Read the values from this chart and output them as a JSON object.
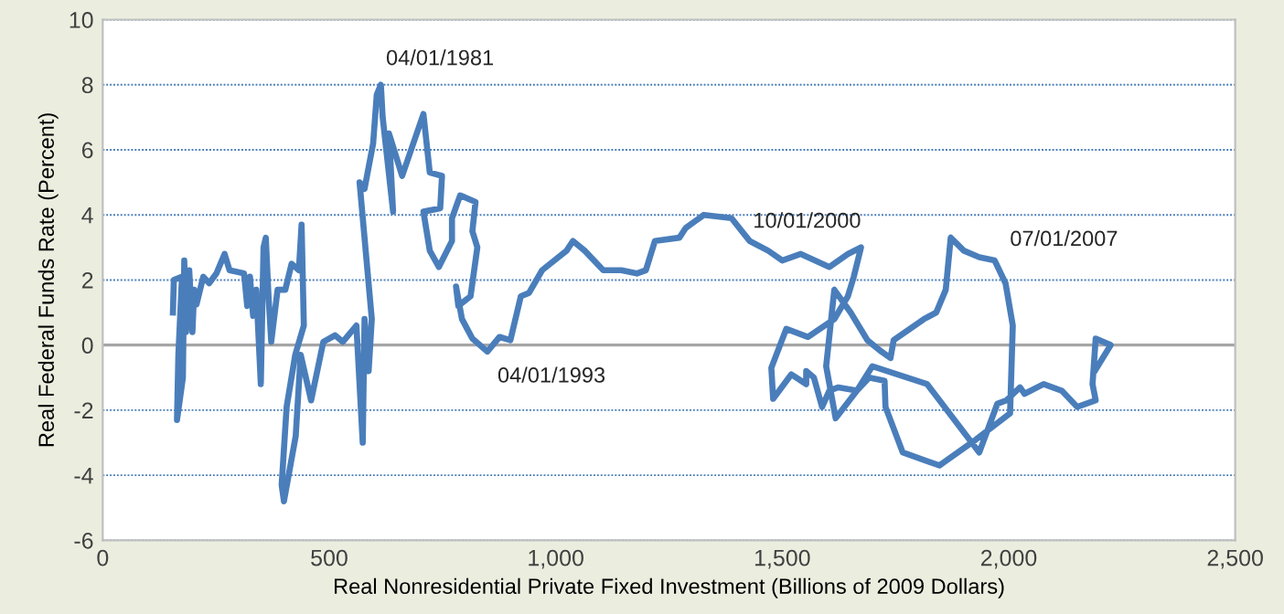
{
  "chart_data": {
    "type": "line",
    "xlabel": "Real Nonresidential Private Fixed Investment (Billions of 2009 Dollars)",
    "ylabel": "Real Federal Funds Rate (Percent)",
    "xlim": [
      0,
      2500
    ],
    "xticks": [
      0,
      {
        "value": 500,
        "label": "500"
      },
      {
        "value": 1000,
        "label": "1,000"
      },
      {
        "value": 1500,
        "label": "1,500"
      },
      {
        "value": 2000,
        "label": "2,000"
      },
      {
        "value": 2500,
        "label": "2,500"
      }
    ],
    "ylim": [
      -6,
      10
    ],
    "yticks": [
      -6,
      -4,
      -2,
      0,
      2,
      4,
      6,
      8,
      10
    ],
    "grid": "y",
    "legend": false,
    "marker": "none",
    "line_style": "solid",
    "ref_lines": [
      {
        "axis": "y",
        "value": 0,
        "color": "#a6a6a6"
      }
    ],
    "annotations": [
      {
        "text": "04/01/1981",
        "x": 614,
        "y": 8.0
      },
      {
        "text": "04/01/1993",
        "x": 849,
        "y": -0.2
      },
      {
        "text": "10/01/2000",
        "x": 1674,
        "y": 3.0
      },
      {
        "text": "07/01/2007",
        "x": 1969,
        "y": 2.6
      }
    ],
    "series": [
      {
        "color": "#4a7ebb",
        "x": [
          155,
          157,
          175,
          167,
          164,
          177,
          180,
          184,
          191,
          198,
          202,
          207,
          222,
          235,
          251,
          269,
          280,
          312,
          319,
          325,
          332,
          339,
          349,
          355,
          360,
          366,
          372,
          386,
          403,
          417,
          433,
          439,
          444,
          425,
          406,
          395,
          400,
          426,
          437,
          460,
          487,
          513,
          530,
          560,
          574,
          578,
          587,
          594,
          567,
          578,
          597,
          605,
          614,
          618,
          641,
          632,
          661,
          708,
          722,
          749,
          745,
          708,
          722,
          742,
          771,
          771,
          789,
          823,
          816,
          827,
          812,
          785,
          780,
          793,
          816,
          849,
          876,
          900,
          923,
          941,
          970,
          1024,
          1038,
          1064,
          1105,
          1145,
          1179,
          1199,
          1219,
          1273,
          1287,
          1327,
          1388,
          1428,
          1469,
          1500,
          1541,
          1604,
          1645,
          1674,
          1658,
          1645,
          1615,
          1557,
          1509,
          1476,
          1480,
          1520,
          1553,
          1553,
          1570,
          1588,
          1604,
          1624,
          1665,
          1692,
          1726,
          1728,
          1766,
          1847,
          1928,
          2003,
          2009,
          1993,
          1969,
          1935,
          1901,
          1872,
          1861,
          1840,
          1813,
          1746,
          1739,
          1719,
          1688,
          1651,
          1615,
          1597,
          1618,
          1665,
          1699,
          1820,
          1935,
          1975,
          1995,
          2025,
          2035,
          2077,
          2117,
          2151,
          2192,
          2185,
          2192,
          2225,
          2192
        ],
        "values": [
          1.0,
          2.0,
          2.1,
          -0.3,
          -2.3,
          -1.0,
          2.6,
          0.4,
          2.3,
          0.4,
          1.7,
          1.25,
          2.1,
          1.9,
          2.2,
          2.8,
          2.3,
          2.2,
          1.2,
          2.1,
          0.9,
          1.7,
          -1.2,
          3.0,
          3.3,
          1.5,
          0.1,
          1.7,
          1.7,
          2.5,
          2.3,
          3.7,
          0.6,
          -0.3,
          -1.9,
          -4.3,
          -4.8,
          -2.8,
          -0.3,
          -1.7,
          0.1,
          0.3,
          0.1,
          0.6,
          -3.0,
          0.8,
          -0.8,
          0.8,
          5.0,
          4.8,
          6.2,
          7.7,
          8.0,
          7.0,
          4.1,
          6.5,
          5.2,
          7.1,
          5.3,
          5.2,
          4.2,
          4.1,
          2.9,
          2.4,
          3.2,
          3.9,
          4.6,
          4.4,
          3.5,
          3.0,
          1.5,
          1.2,
          1.8,
          0.8,
          0.2,
          -0.2,
          0.25,
          0.15,
          1.5,
          1.6,
          2.3,
          2.9,
          3.2,
          2.9,
          2.3,
          2.3,
          2.2,
          2.3,
          3.2,
          3.3,
          3.6,
          4.0,
          3.9,
          3.2,
          2.9,
          2.6,
          2.8,
          2.4,
          2.8,
          3.0,
          2.1,
          1.5,
          0.8,
          0.25,
          0.5,
          -0.7,
          -1.65,
          -0.9,
          -1.2,
          -0.8,
          -1.0,
          -1.9,
          -1.4,
          -1.3,
          -1.4,
          -1.0,
          -1.1,
          -1.9,
          -3.3,
          -3.7,
          -2.9,
          -2.1,
          0.6,
          1.9,
          2.6,
          2.7,
          2.9,
          3.3,
          1.7,
          1.0,
          0.8,
          0.15,
          -0.4,
          -0.2,
          0.15,
          1.0,
          1.7,
          -0.65,
          -2.25,
          -1.4,
          -0.65,
          -1.2,
          -3.3,
          -1.8,
          -1.7,
          -1.3,
          -1.5,
          -1.2,
          -1.4,
          -1.9,
          -1.7,
          -1.2,
          0.2,
          0.0,
          -0.75
        ]
      }
    ]
  }
}
